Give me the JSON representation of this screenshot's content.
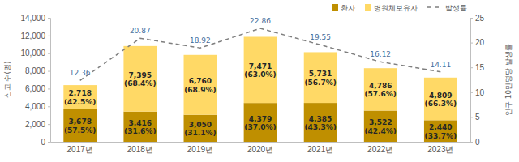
{
  "chart_data": {
    "type": "bar",
    "stacked": true,
    "data_labels": true,
    "legend": "upper right",
    "grid": false,
    "categories": [
      "2017년",
      "2018년",
      "2019년",
      "2020년",
      "2021년",
      "2022년",
      "2023년"
    ],
    "y_label": "신고 수(명)",
    "y2_label": "인구 10만명당 발생률",
    "ylim": [
      0,
      14000
    ],
    "yticks": [
      0,
      {
        "value": 2000,
        "label": "2,000"
      },
      {
        "value": 4000,
        "label": "4,000"
      },
      {
        "value": 6000,
        "label": "6,000"
      },
      {
        "value": 8000,
        "label": "8,000"
      },
      {
        "value": 10000,
        "label": "10,000"
      },
      {
        "value": 12000,
        "label": "12,000"
      },
      {
        "value": 14000,
        "label": "14,000"
      }
    ],
    "y2lim": [
      0,
      25
    ],
    "y2ticks": [
      0,
      5,
      10,
      15,
      20,
      25
    ],
    "series": [
      {
        "name": "환자",
        "color": "#bf8f00",
        "values": [
          3678,
          3416,
          3050,
          4379,
          4385,
          3522,
          2440
        ],
        "value_labels": [
          "3,678",
          "3,416",
          "3,050",
          "4,379",
          "4,385",
          "3,522",
          "2,440"
        ],
        "shares": [
          57.5,
          31.6,
          31.1,
          37.0,
          43.3,
          42.4,
          33.7
        ],
        "share_labels": [
          "(57.5%)",
          "(31.6%)",
          "(31.1%)",
          "(37.0%)",
          "(43.3%)",
          "(42.4%)",
          "(33.7%)"
        ]
      },
      {
        "name": "병원체보유자",
        "color": "#ffd966",
        "values": [
          2718,
          7395,
          6760,
          7471,
          5731,
          4786,
          4809
        ],
        "value_labels": [
          "2,718",
          "7,395",
          "6,760",
          "7,471",
          "5,731",
          "4,786",
          "4,809"
        ],
        "shares": [
          42.5,
          68.4,
          68.9,
          63.0,
          56.7,
          57.6,
          66.3
        ],
        "share_labels": [
          "(42.5%)",
          "(68.4%)",
          "(68.9%)",
          "(63.0%)",
          "(56.7%)",
          "(57.6%)",
          "(66.3%)"
        ]
      },
      {
        "name": "발생률",
        "type": "line",
        "axis": "y2",
        "color": "#7f7f7f",
        "line_style": "dashed",
        "values": [
          12.36,
          20.87,
          18.92,
          22.86,
          19.55,
          16.12,
          14.11
        ]
      }
    ]
  }
}
